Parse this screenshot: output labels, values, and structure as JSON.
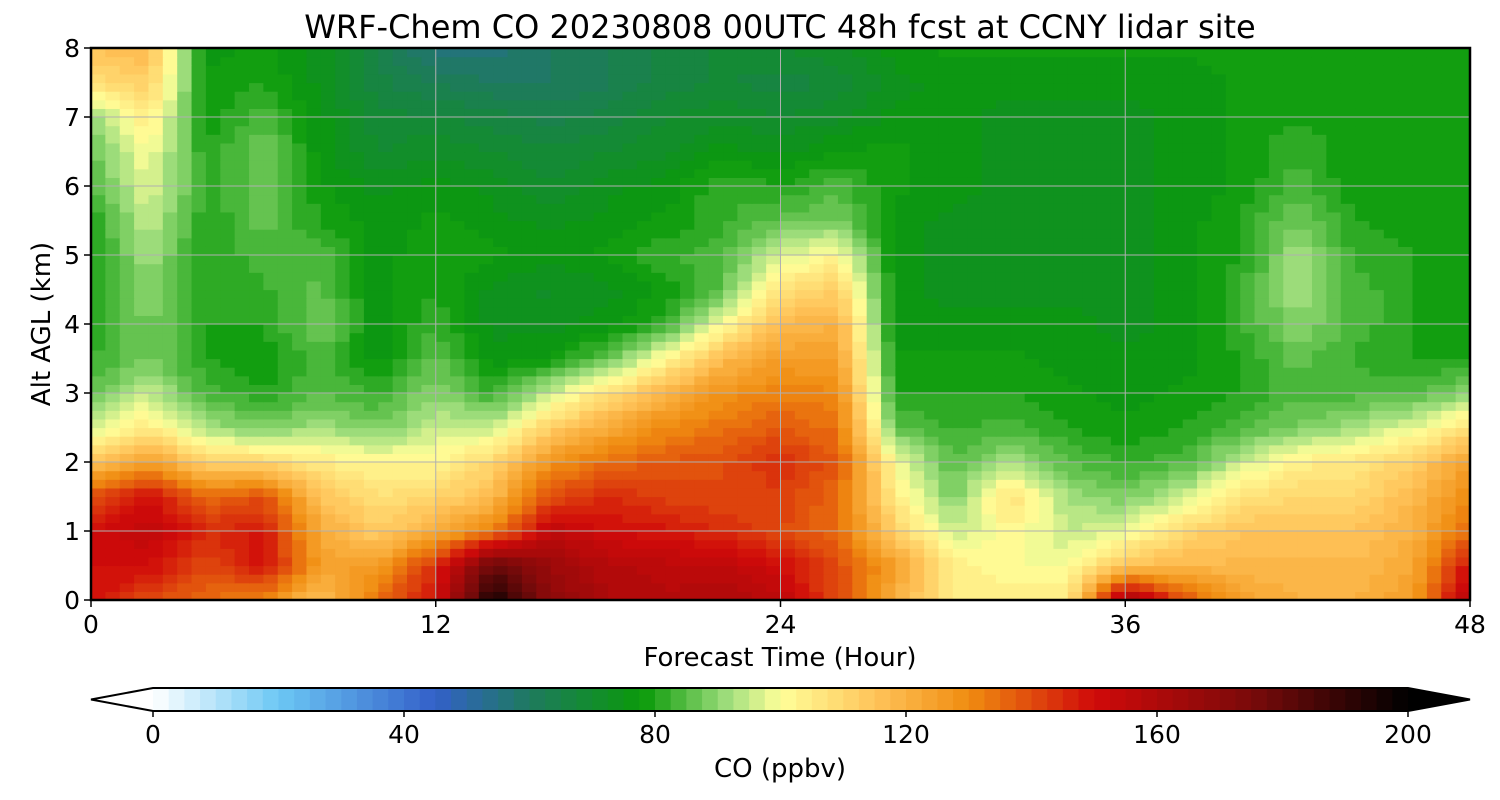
{
  "chart_data": {
    "type": "heatmap",
    "title": "WRF-Chem CO  20230808 00UTC 48h fcst at CCNY lidar site",
    "xlabel": "Forecast Time (Hour)",
    "ylabel": "Alt AGL (km)",
    "xlim": [
      0,
      48
    ],
    "ylim": [
      0,
      8
    ],
    "x_ticks": [
      "0",
      "12",
      "24",
      "36",
      "48"
    ],
    "y_ticks": [
      "0",
      "1",
      "2",
      "3",
      "4",
      "5",
      "6",
      "7",
      "8"
    ],
    "grid": true,
    "x": [
      0,
      2,
      4,
      6,
      8,
      10,
      12,
      14,
      16,
      18,
      20,
      22,
      24,
      26,
      28,
      30,
      32,
      34,
      36,
      38,
      40,
      42,
      44,
      46,
      48
    ],
    "y": [
      0,
      0.5,
      1,
      1.5,
      2,
      2.5,
      3,
      3.5,
      4,
      4.5,
      5,
      5.5,
      6,
      6.5,
      7,
      7.5,
      8
    ],
    "z": [
      [
        150,
        140,
        135,
        130,
        115,
        135,
        150,
        195,
        170,
        160,
        158,
        160,
        155,
        140,
        120,
        105,
        105,
        105,
        165,
        140,
        125,
        120,
        120,
        125,
        160
      ],
      [
        150,
        150,
        140,
        150,
        125,
        125,
        145,
        180,
        165,
        158,
        156,
        155,
        150,
        140,
        125,
        105,
        100,
        100,
        115,
        118,
        118,
        118,
        118,
        122,
        150
      ],
      [
        150,
        155,
        145,
        148,
        122,
        112,
        122,
        132,
        155,
        150,
        148,
        145,
        140,
        135,
        112,
        95,
        102,
        95,
        98,
        110,
        115,
        115,
        115,
        120,
        135
      ],
      [
        140,
        150,
        135,
        140,
        115,
        108,
        110,
        118,
        140,
        145,
        142,
        140,
        142,
        135,
        105,
        88,
        108,
        92,
        88,
        95,
        108,
        110,
        110,
        118,
        130
      ],
      [
        115,
        125,
        112,
        110,
        105,
        102,
        102,
        110,
        128,
        135,
        138,
        140,
        145,
        138,
        100,
        85,
        92,
        85,
        82,
        84,
        95,
        104,
        106,
        112,
        125
      ],
      [
        95,
        105,
        92,
        88,
        92,
        88,
        95,
        95,
        112,
        122,
        130,
        134,
        138,
        134,
        86,
        82,
        84,
        80,
        78,
        80,
        84,
        88,
        92,
        98,
        108
      ],
      [
        86,
        95,
        84,
        80,
        85,
        82,
        90,
        82,
        95,
        108,
        120,
        128,
        132,
        130,
        80,
        80,
        80,
        78,
        76,
        78,
        80,
        84,
        84,
        84,
        90
      ],
      [
        82,
        88,
        80,
        78,
        84,
        76,
        86,
        76,
        78,
        86,
        102,
        118,
        125,
        125,
        78,
        78,
        78,
        76,
        76,
        76,
        80,
        86,
        82,
        80,
        80
      ],
      [
        80,
        88,
        80,
        80,
        88,
        76,
        82,
        74,
        74,
        76,
        82,
        100,
        118,
        120,
        76,
        76,
        76,
        76,
        74,
        76,
        82,
        90,
        84,
        80,
        78
      ],
      [
        80,
        90,
        80,
        82,
        86,
        76,
        80,
        74,
        72,
        74,
        78,
        86,
        108,
        112,
        76,
        74,
        74,
        74,
        74,
        76,
        82,
        92,
        84,
        80,
        78
      ],
      [
        80,
        92,
        80,
        84,
        84,
        76,
        80,
        78,
        76,
        78,
        82,
        84,
        96,
        102,
        76,
        74,
        74,
        74,
        74,
        76,
        80,
        92,
        82,
        80,
        78
      ],
      [
        80,
        95,
        80,
        86,
        80,
        76,
        78,
        76,
        74,
        76,
        78,
        82,
        86,
        88,
        76,
        74,
        74,
        74,
        74,
        76,
        80,
        88,
        80,
        78,
        78
      ],
      [
        84,
        98,
        82,
        86,
        78,
        74,
        76,
        74,
        70,
        74,
        76,
        82,
        80,
        84,
        78,
        76,
        74,
        74,
        74,
        76,
        78,
        84,
        78,
        78,
        78
      ],
      [
        86,
        100,
        80,
        88,
        76,
        70,
        72,
        70,
        68,
        70,
        72,
        76,
        74,
        78,
        78,
        76,
        74,
        74,
        74,
        76,
        78,
        82,
        78,
        78,
        78
      ],
      [
        90,
        105,
        78,
        84,
        76,
        68,
        68,
        66,
        64,
        66,
        70,
        72,
        70,
        72,
        76,
        76,
        74,
        74,
        74,
        76,
        78,
        80,
        78,
        78,
        80
      ],
      [
        108,
        112,
        78,
        80,
        74,
        66,
        62,
        60,
        60,
        62,
        66,
        68,
        66,
        68,
        74,
        76,
        76,
        76,
        76,
        76,
        78,
        78,
        78,
        78,
        80
      ],
      [
        115,
        118,
        76,
        78,
        74,
        64,
        56,
        56,
        60,
        62,
        66,
        68,
        70,
        72,
        76,
        78,
        78,
        78,
        78,
        78,
        78,
        80,
        80,
        78,
        80
      ]
    ],
    "colorbar": {
      "label": "CO  (ppbv)",
      "min": 0,
      "max": 200,
      "ticks": [
        "0",
        "40",
        "80",
        "120",
        "160",
        "200"
      ],
      "extend": "both",
      "colormap_stops": [
        {
          "value": 0,
          "color": "#ffffff"
        },
        {
          "value": 20,
          "color": "#6cc7f4"
        },
        {
          "value": 45,
          "color": "#3360c9"
        },
        {
          "value": 60,
          "color": "#1e7a5e"
        },
        {
          "value": 78,
          "color": "#0a9a0a"
        },
        {
          "value": 92,
          "color": "#a4e080"
        },
        {
          "value": 100,
          "color": "#ffff99"
        },
        {
          "value": 115,
          "color": "#ffc45a"
        },
        {
          "value": 130,
          "color": "#f08c10"
        },
        {
          "value": 150,
          "color": "#d00a0a"
        },
        {
          "value": 175,
          "color": "#7a0a0a"
        },
        {
          "value": 200,
          "color": "#000000"
        }
      ]
    }
  }
}
